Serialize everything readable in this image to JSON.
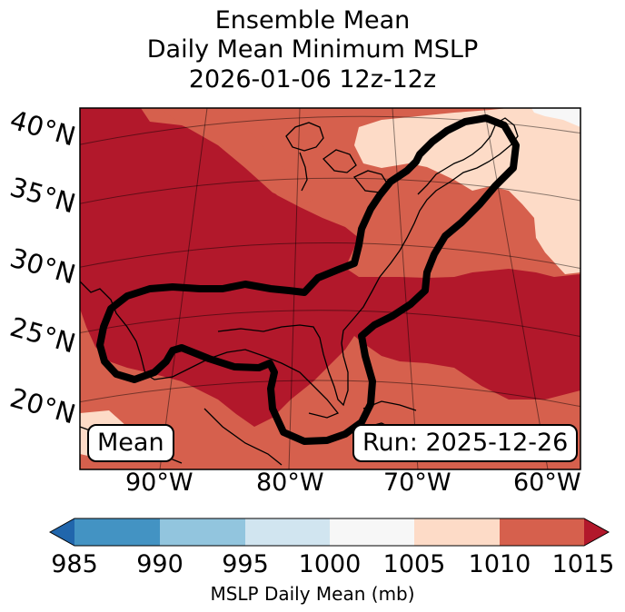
{
  "title": {
    "line1": "Ensemble Mean",
    "line2": "Daily Mean Minimum MSLP",
    "line3": "2026-01-06 12z-12z"
  },
  "map": {
    "lat_labels": [
      "40°N",
      "35°N",
      "30°N",
      "25°N",
      "20°N"
    ],
    "lon_labels": [
      "90°W",
      "80°W",
      "70°W",
      "60°W"
    ],
    "mean_label": "Mean",
    "run_label": "Run: 2025-12-26",
    "region_outline_color": "#000000"
  },
  "colorbar": {
    "label": "MSLP Daily Mean (mb)",
    "ticks": [
      "985",
      "990",
      "995",
      "1000",
      "1005",
      "1010",
      "1015"
    ],
    "colors": [
      "#2166ac",
      "#4393c3",
      "#92c5de",
      "#d1e5f0",
      "#f7f7f7",
      "#fddbc7",
      "#d6604d",
      "#b2182b"
    ]
  }
}
